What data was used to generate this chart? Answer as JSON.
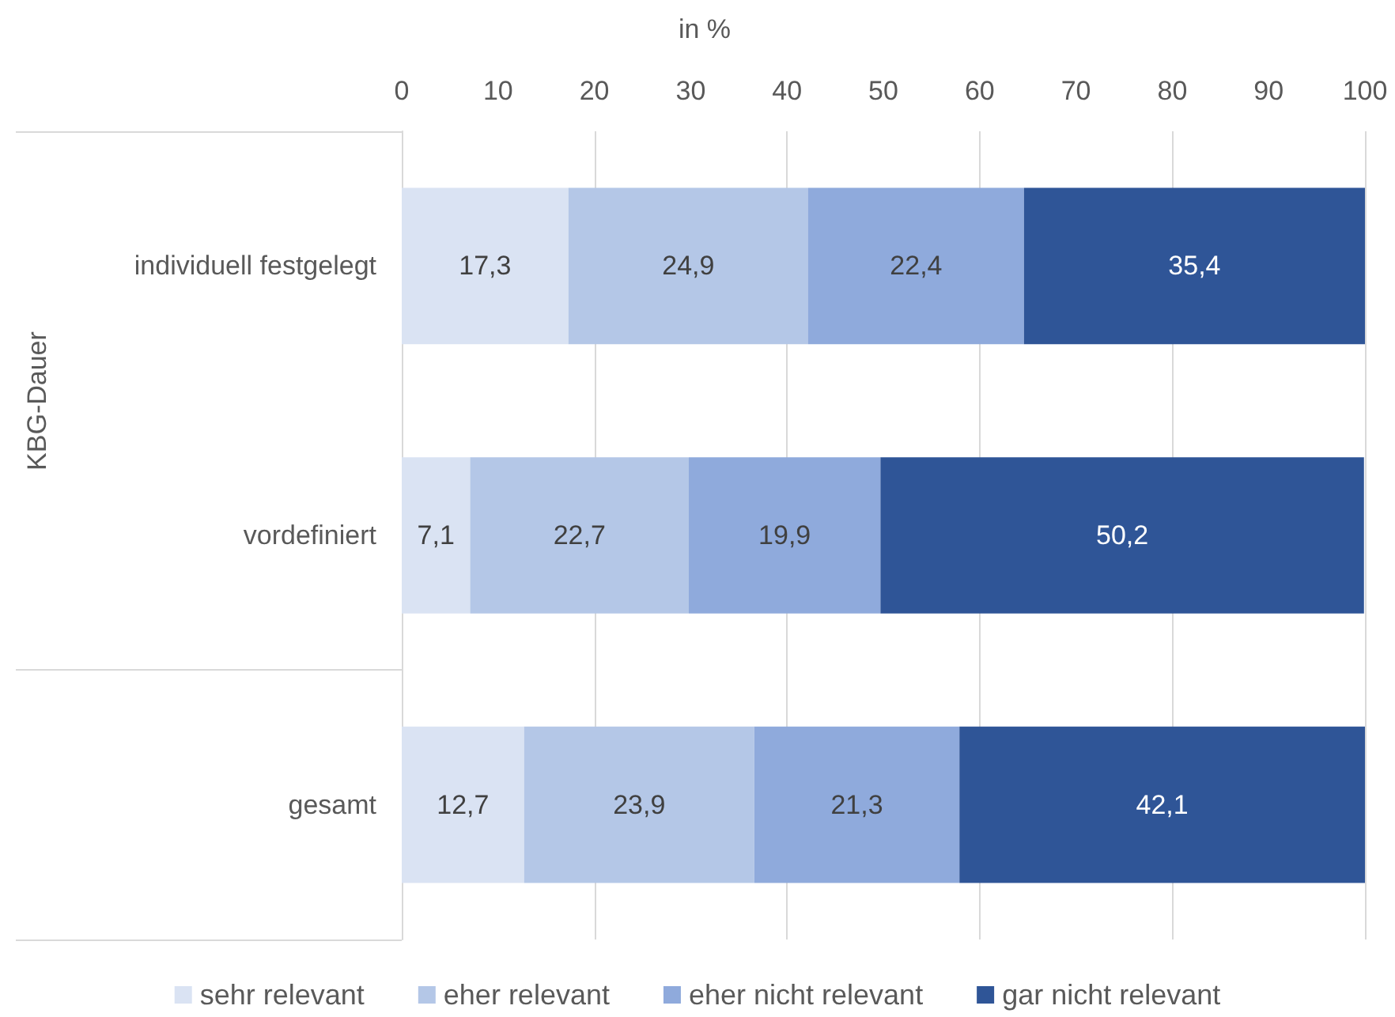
{
  "chart_data": {
    "type": "bar",
    "orientation": "horizontal",
    "stacked": true,
    "xlabel": "in %",
    "ylabel": "KBG-Dauer",
    "categories": [
      "individuell festgelegt",
      "vordefiniert",
      "gesamt"
    ],
    "series": [
      {
        "name": "sehr relevant",
        "color": "#dae3f3",
        "values": [
          17.3,
          7.1,
          12.7
        ],
        "value_labels": [
          "17,3",
          "7,1",
          "12,7"
        ]
      },
      {
        "name": "eher relevant",
        "color": "#b4c7e7",
        "values": [
          24.9,
          22.7,
          23.9
        ],
        "value_labels": [
          "24,9",
          "22,7",
          "23,9"
        ]
      },
      {
        "name": "eher nicht relevant",
        "color": "#8faadc",
        "values": [
          22.4,
          19.9,
          21.3
        ],
        "value_labels": [
          "22,4",
          "19,9",
          "21,3"
        ]
      },
      {
        "name": "gar nicht relevant",
        "color": "#2f5597",
        "values": [
          35.4,
          50.2,
          42.1
        ],
        "value_labels": [
          "35,4",
          "50,2",
          "42,1"
        ]
      }
    ],
    "xlim": [
      0,
      100
    ],
    "xticks": [
      0,
      10,
      20,
      30,
      40,
      50,
      60,
      70,
      80,
      90,
      100
    ],
    "grid": "x",
    "legend": "bottom"
  }
}
